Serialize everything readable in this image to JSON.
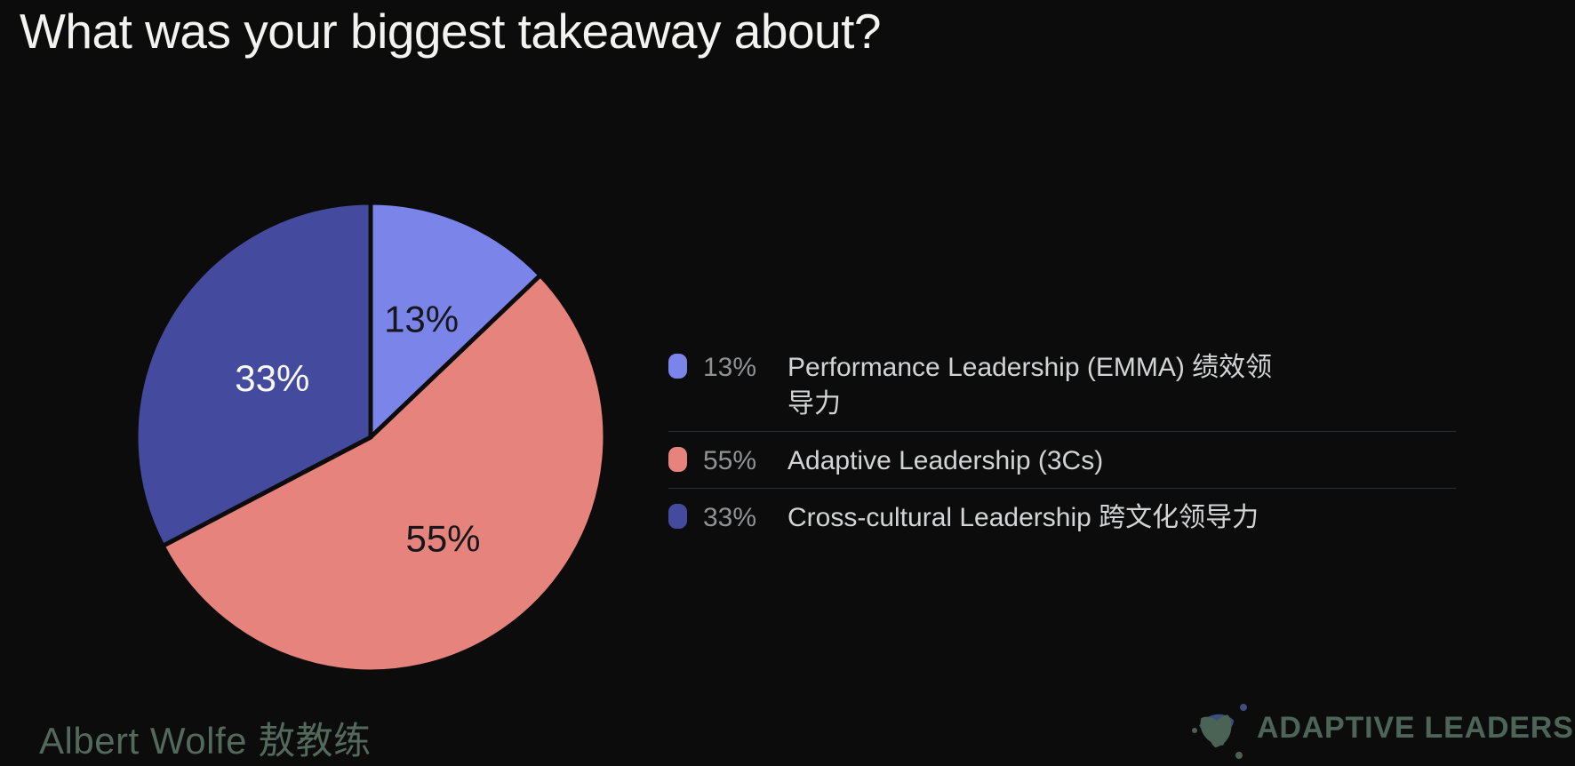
{
  "page": {
    "title": "What was your biggest takeaway about?",
    "background": "#0c0c0c"
  },
  "chart_data": {
    "type": "pie",
    "title": "What was your biggest takeaway about?",
    "start_angle_deg": -90,
    "direction": "clockwise",
    "legend_position": "right",
    "slices": [
      {
        "label": "Performance Leadership (EMMA) 绩效领导力",
        "value": 13,
        "pct_label": "13%",
        "color": "#7b85e9",
        "value_label_color": "#17171b"
      },
      {
        "label": "Adaptive Leadership (3Cs)",
        "value": 55,
        "pct_label": "55%",
        "color": "#e5837c",
        "value_label_color": "#17171b"
      },
      {
        "label": "Cross-cultural Leadership 跨文化领导力",
        "value": 33,
        "pct_label": "33%",
        "color": "#444b9f",
        "value_label_color": "#fafafa"
      }
    ]
  },
  "legend": {
    "rows": [
      {
        "pct": "13%",
        "label": "Performance Leadership (EMMA) 绩效领\n导力",
        "color": "#7b85e9"
      },
      {
        "pct": "55%",
        "label": "Adaptive Leadership (3Cs)",
        "color": "#e5837c"
      },
      {
        "pct": "33%",
        "label": "Cross-cultural Leadership 跨文化领导力",
        "color": "#444b9f"
      }
    ],
    "divider_color": "#2b3036"
  },
  "footer": {
    "presenter": "Albert Wolfe 敖教练",
    "brand": "ADAPTIVE LEADERS",
    "brand_colors": {
      "leaf_green": "#4b6354",
      "leaf_blue": "#3d4d7e",
      "text": "#4d6558"
    }
  }
}
